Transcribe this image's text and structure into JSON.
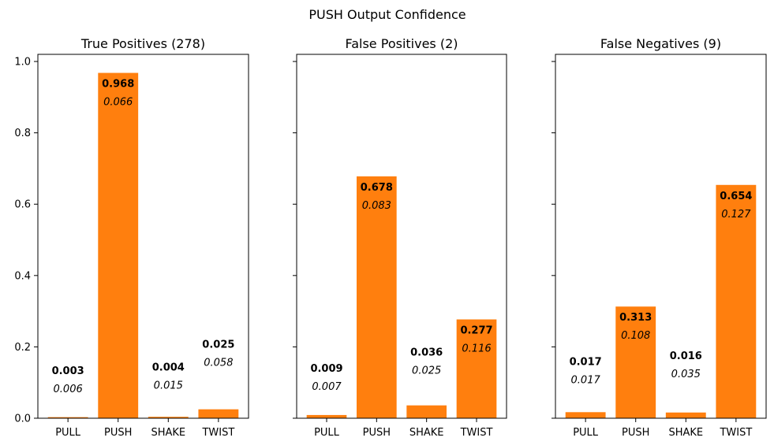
{
  "figure": {
    "suptitle": "PUSH Output Confidence"
  },
  "style": {
    "bar_color": "#ff7f0e",
    "axis_color": "#000000"
  },
  "chart_data": [
    {
      "type": "bar",
      "title": "True Positives (278)",
      "categories": [
        "PULL",
        "PUSH",
        "SHAKE",
        "TWIST"
      ],
      "values": [
        0.003,
        0.968,
        0.004,
        0.025
      ],
      "value_labels": [
        "0.003",
        "0.968",
        "0.004",
        "0.025"
      ],
      "std": [
        0.006,
        0.066,
        0.015,
        0.058
      ],
      "std_labels": [
        "0.006",
        "0.066",
        "0.015",
        "0.058"
      ],
      "ylim": [
        0,
        1.02
      ],
      "yticks": [
        0.0,
        0.2,
        0.4,
        0.6,
        0.8,
        1.0
      ],
      "ytick_labels": [
        "0.0",
        "0.2",
        "0.4",
        "0.6",
        "0.8",
        "1.0"
      ],
      "show_ytick_labels": true,
      "xlabel": "",
      "ylabel": "",
      "grid": false
    },
    {
      "type": "bar",
      "title": "False Positives (2)",
      "categories": [
        "PULL",
        "PUSH",
        "SHAKE",
        "TWIST"
      ],
      "values": [
        0.009,
        0.678,
        0.036,
        0.277
      ],
      "value_labels": [
        "0.009",
        "0.678",
        "0.036",
        "0.277"
      ],
      "std": [
        0.007,
        0.083,
        0.025,
        0.116
      ],
      "std_labels": [
        "0.007",
        "0.083",
        "0.025",
        "0.116"
      ],
      "ylim": [
        0,
        1.02
      ],
      "yticks": [
        0.0,
        0.2,
        0.4,
        0.6,
        0.8,
        1.0
      ],
      "ytick_labels": [
        "0.0",
        "0.2",
        "0.4",
        "0.6",
        "0.8",
        "1.0"
      ],
      "show_ytick_labels": false,
      "xlabel": "",
      "ylabel": "",
      "grid": false
    },
    {
      "type": "bar",
      "title": "False Negatives (9)",
      "categories": [
        "PULL",
        "PUSH",
        "SHAKE",
        "TWIST"
      ],
      "values": [
        0.017,
        0.313,
        0.016,
        0.654
      ],
      "value_labels": [
        "0.017",
        "0.313",
        "0.016",
        "0.654"
      ],
      "std": [
        0.017,
        0.108,
        0.035,
        0.127
      ],
      "std_labels": [
        "0.017",
        "0.108",
        "0.035",
        "0.127"
      ],
      "ylim": [
        0,
        1.02
      ],
      "yticks": [
        0.0,
        0.2,
        0.4,
        0.6,
        0.8,
        1.0
      ],
      "ytick_labels": [
        "0.0",
        "0.2",
        "0.4",
        "0.6",
        "0.8",
        "1.0"
      ],
      "show_ytick_labels": false,
      "xlabel": "",
      "ylabel": "",
      "grid": false
    }
  ]
}
